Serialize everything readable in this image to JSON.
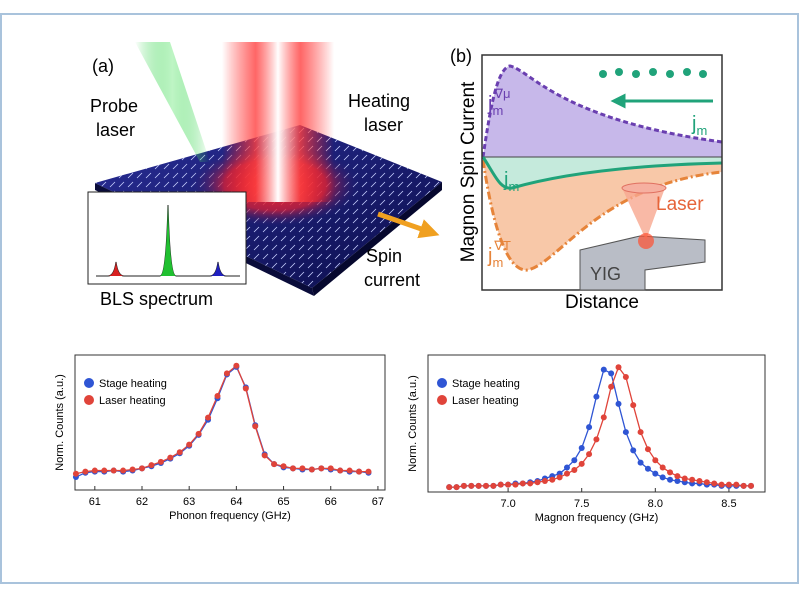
{
  "panel_a": {
    "label": "(a)",
    "probe_laser": [
      "Probe",
      "laser"
    ],
    "heating_laser": [
      "Heating",
      "laser"
    ],
    "spin_current": [
      "Spin",
      "current"
    ],
    "inset": "BLS spectrum"
  },
  "panel_b": {
    "label": "(b)",
    "y_label": "Magnon Spin Current",
    "x_label": "Distance",
    "j_mu": {
      "base": "j",
      "sub": "m",
      "sup": "∇μ"
    },
    "j_top": {
      "base": "j",
      "sub": "m"
    },
    "j_mid": {
      "base": "j",
      "sub": "m"
    },
    "j_T": {
      "base": "j",
      "sub": "m",
      "sup": "∇T"
    },
    "laser": "Laser",
    "yig": "YIG"
  },
  "chart_data": [
    {
      "type": "scatter",
      "y_label": "Norm. Counts (a.u.)",
      "x_label": "Phonon frequency (GHz)",
      "x": [
        60.6,
        60.8,
        61.0,
        61.2,
        61.4,
        61.6,
        61.8,
        62.0,
        62.2,
        62.4,
        62.6,
        62.8,
        63.0,
        63.2,
        63.4,
        63.6,
        63.8,
        64.0,
        64.2,
        64.4,
        64.6,
        64.8,
        65.0,
        65.2,
        65.4,
        65.6,
        65.8,
        66.0,
        66.2,
        66.4,
        66.6,
        66.8
      ],
      "series": [
        {
          "name": "Stage heating",
          "color": "#2f55d4",
          "values": [
            -0.03,
            0.01,
            0.02,
            0.02,
            0.03,
            0.02,
            0.03,
            0.05,
            0.07,
            0.1,
            0.14,
            0.19,
            0.26,
            0.36,
            0.5,
            0.7,
            0.92,
            0.99,
            0.8,
            0.45,
            0.18,
            0.09,
            0.06,
            0.05,
            0.04,
            0.04,
            0.05,
            0.04,
            0.03,
            0.02,
            0.02,
            0.01
          ]
        },
        {
          "name": "Laser heating",
          "color": "#e0443a",
          "values": [
            0.0,
            0.02,
            0.03,
            0.03,
            0.03,
            0.03,
            0.04,
            0.05,
            0.08,
            0.11,
            0.15,
            0.2,
            0.27,
            0.37,
            0.52,
            0.72,
            0.93,
            1.0,
            0.79,
            0.44,
            0.17,
            0.09,
            0.07,
            0.05,
            0.05,
            0.04,
            0.05,
            0.05,
            0.03,
            0.03,
            0.02,
            0.02
          ]
        }
      ],
      "xlim": [
        60.58,
        67.15
      ],
      "xticks": [
        61,
        62,
        63,
        64,
        65,
        66,
        67
      ],
      "ylim": [
        -0.15,
        1.1
      ],
      "legend": "upper left"
    },
    {
      "type": "scatter",
      "y_label": "Norm. Counts (a.u.)",
      "x_label": "Magnon frequency (GHz)",
      "x": [
        6.6,
        6.65,
        6.7,
        6.75,
        6.8,
        6.85,
        6.9,
        6.95,
        7.0,
        7.05,
        7.1,
        7.15,
        7.2,
        7.25,
        7.3,
        7.35,
        7.4,
        7.45,
        7.5,
        7.55,
        7.6,
        7.65,
        7.7,
        7.75,
        7.8,
        7.85,
        7.9,
        7.95,
        8.0,
        8.05,
        8.1,
        8.15,
        8.2,
        8.25,
        8.3,
        8.35,
        8.4,
        8.45,
        8.5,
        8.55,
        8.6,
        8.65
      ],
      "series": [
        {
          "name": "Stage heating",
          "color": "#2f55d4",
          "values": [
            0.01,
            0.01,
            0.02,
            0.02,
            0.02,
            0.02,
            0.02,
            0.03,
            0.03,
            0.04,
            0.04,
            0.05,
            0.06,
            0.08,
            0.1,
            0.12,
            0.17,
            0.23,
            0.33,
            0.5,
            0.75,
            0.97,
            0.94,
            0.69,
            0.46,
            0.31,
            0.21,
            0.16,
            0.12,
            0.09,
            0.07,
            0.06,
            0.05,
            0.04,
            0.04,
            0.03,
            0.03,
            0.02,
            0.02,
            0.02,
            0.02,
            0.02
          ]
        },
        {
          "name": "Laser heating",
          "color": "#e0443a",
          "values": [
            0.01,
            0.01,
            0.02,
            0.02,
            0.02,
            0.02,
            0.02,
            0.03,
            0.03,
            0.03,
            0.04,
            0.04,
            0.05,
            0.06,
            0.07,
            0.09,
            0.12,
            0.15,
            0.2,
            0.28,
            0.4,
            0.58,
            0.83,
            0.99,
            0.91,
            0.68,
            0.46,
            0.32,
            0.23,
            0.17,
            0.13,
            0.1,
            0.08,
            0.07,
            0.06,
            0.05,
            0.04,
            0.03,
            0.03,
            0.03,
            0.02,
            0.02
          ]
        }
      ],
      "xlim": [
        6.456,
        8.745
      ],
      "xticks": [
        {
          "value": 7,
          "label": "7.0"
        },
        {
          "value": 7.5,
          "label": "7.5"
        },
        {
          "value": 8,
          "label": "8.0"
        },
        {
          "value": 8.5,
          "label": "8.5"
        }
      ],
      "ylim": [
        -0.03,
        1.09
      ],
      "legend": "upper left"
    }
  ]
}
